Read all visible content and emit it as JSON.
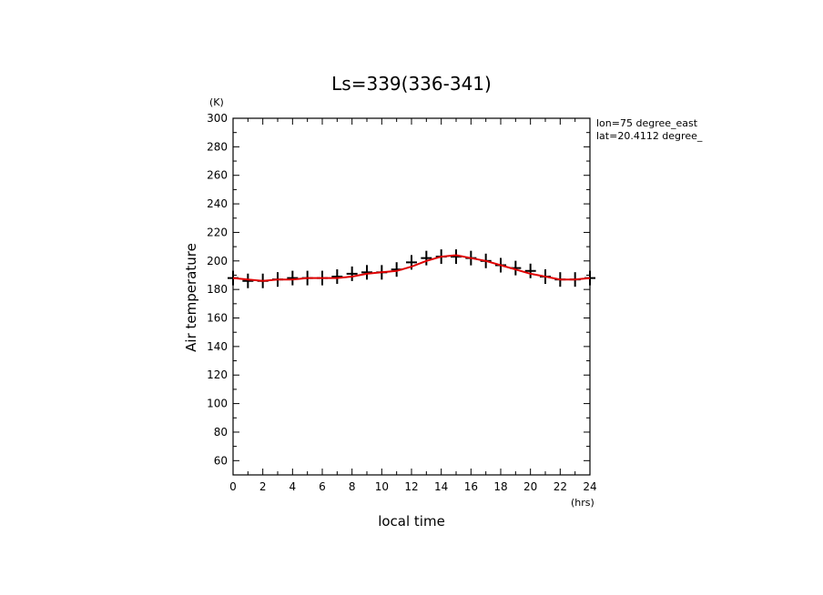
{
  "chart_data": {
    "type": "line",
    "title": "Ls=339(336-341)",
    "xlabel": "local time",
    "ylabel": "Air temperature",
    "x_unit": "(hrs)",
    "y_unit": "(K)",
    "xlim": [
      0,
      24
    ],
    "ylim": [
      50,
      300
    ],
    "x_ticks": [
      "0",
      "2",
      "4",
      "6",
      "8",
      "10",
      "12",
      "14",
      "16",
      "18",
      "20",
      "22",
      "24"
    ],
    "y_ticks": [
      "60",
      "80",
      "100",
      "120",
      "140",
      "160",
      "180",
      "200",
      "220",
      "240",
      "260",
      "280",
      "300"
    ],
    "annotations": [
      "lon=75 degree_east",
      "lat=20.4112 degree_"
    ],
    "grid": false,
    "line_color": "#e00000",
    "marker_color": "#000000",
    "series": [
      {
        "marker": "plus-with-errorbar",
        "x": [
          0,
          1,
          2,
          3,
          4,
          5,
          6,
          7,
          8,
          9,
          10,
          11,
          12,
          13,
          14,
          15,
          16,
          17,
          18,
          19,
          20,
          21,
          22,
          23,
          24
        ],
        "y": [
          188,
          186,
          186,
          187,
          188,
          188,
          188,
          189,
          191,
          192,
          192,
          194,
          199,
          202,
          203,
          203,
          202,
          200,
          197,
          195,
          193,
          189,
          187,
          187,
          188
        ]
      },
      {
        "marker": "none",
        "x": [
          0,
          1,
          2,
          3,
          4,
          5,
          6,
          7,
          8,
          9,
          10,
          11,
          12,
          13,
          14,
          15,
          16,
          17,
          18,
          19,
          20,
          21,
          22,
          23,
          24
        ],
        "y": [
          188,
          187,
          186,
          187,
          187,
          188,
          188,
          188,
          189,
          191,
          192,
          193,
          196,
          200,
          203,
          204,
          202,
          200,
          197,
          194,
          191,
          189,
          187,
          187,
          188
        ]
      }
    ]
  }
}
